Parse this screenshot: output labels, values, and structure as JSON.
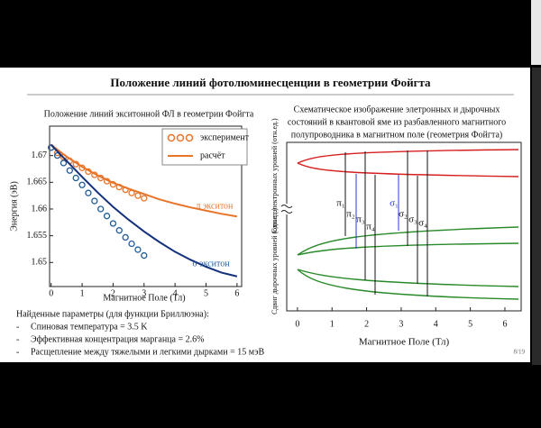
{
  "slide": {
    "title": "Положение линий фотолюминесценции в геометрии Фойгта",
    "params_heading": "Найденные параметры (для функции Бриллюэна):",
    "params": [
      "Спиновая температура = 3.5 K",
      "Эффективная концентрация марганца = 2.6%",
      "Расщепление между тяжелыми и легкими дырками = 15 мэВ"
    ],
    "page": "8/19"
  },
  "chart_data": [
    {
      "type": "line",
      "title": "Положение линий экситонной ФЛ в геометрии Фойгта",
      "xlabel": "Магнитное Поле (Тл)",
      "ylabel": "Энергия (эВ)",
      "xlim": [
        -0.05,
        6.15
      ],
      "xticks": [
        0,
        1,
        2,
        3,
        4,
        5,
        6
      ],
      "ylim": [
        1.6455,
        1.6755
      ],
      "yticks": [
        1.65,
        1.655,
        1.66,
        1.665,
        1.67
      ],
      "series": [
        {
          "marker": "circle",
          "color": "#e8742a",
          "x": [
            0,
            0.2,
            0.4,
            0.6,
            0.8,
            1.0,
            1.2,
            1.4,
            1.6,
            1.8,
            2.0,
            2.2,
            2.4,
            2.6,
            2.8,
            3.0
          ],
          "values": [
            1.6715,
            1.6705,
            1.6697,
            1.669,
            1.6684,
            1.6677,
            1.667,
            1.6664,
            1.6658,
            1.6652,
            1.6646,
            1.6641,
            1.6636,
            1.663,
            1.6625,
            1.662
          ]
        },
        {
          "marker": "circle",
          "color": "#1f5b99",
          "x": [
            0,
            0.2,
            0.4,
            0.6,
            0.8,
            1.0,
            1.2,
            1.4,
            1.6,
            1.8,
            2.0,
            2.2,
            2.4,
            2.6,
            2.8,
            3.0
          ],
          "values": [
            1.6715,
            1.67,
            1.6686,
            1.6672,
            1.6658,
            1.6645,
            1.663,
            1.6615,
            1.66,
            1.6587,
            1.6573,
            1.656,
            1.6547,
            1.6535,
            1.6524,
            1.6513
          ]
        },
        {
          "marker": "line",
          "color": "#e8742a",
          "x": [
            0,
            0.5,
            1,
            1.5,
            2,
            2.5,
            3,
            3.5,
            4,
            4.5,
            5,
            5.5,
            6
          ],
          "values": [
            1.672,
            1.6698,
            1.6679,
            1.6663,
            1.6649,
            1.6638,
            1.6628,
            1.6618,
            1.661,
            1.6603,
            1.6597,
            1.6591,
            1.6586
          ]
        },
        {
          "marker": "line",
          "color": "#13307a",
          "x": [
            0,
            0.5,
            1,
            1.5,
            2,
            2.5,
            3,
            3.5,
            4,
            4.5,
            5,
            5.5,
            6
          ],
          "values": [
            1.672,
            1.669,
            1.666,
            1.6631,
            1.6604,
            1.658,
            1.6558,
            1.6538,
            1.652,
            1.6505,
            1.6492,
            1.6481,
            1.6474
          ]
        }
      ],
      "legend": [
        {
          "label": "эксперимент",
          "marker": "circle",
          "color": "#e8742a"
        },
        {
          "label": "расчёт",
          "marker": "line",
          "color": "#e8742a"
        }
      ],
      "annotations": [
        {
          "text": "π экситон",
          "color": "#e8742a"
        },
        {
          "text": "σ экситон",
          "color": "#1f5b99"
        }
      ]
    },
    {
      "type": "schematic",
      "title": [
        "Схематическое изображение элетронных и дырочных",
        "состояний в квантовой яме из разбавленного магнитного",
        "полупроводника в магнитном поле (геометрия Фойгта)"
      ],
      "xlabel": "Магнитное Поле (Тл)",
      "ylabels": [
        "Сдвиг электронных уровней (отн.ед.)",
        "Сдвиг дырочных уровней (отн.ед.)"
      ],
      "xlim": [
        -0.31,
        6.47
      ],
      "xticks": [
        0,
        1,
        2,
        3,
        4,
        5,
        6
      ],
      "transitions": [
        "π₁",
        "π₂",
        "π₃",
        "π₄",
        "σ₁",
        "σ₂",
        "σ₃",
        "σ₄"
      ]
    }
  ]
}
